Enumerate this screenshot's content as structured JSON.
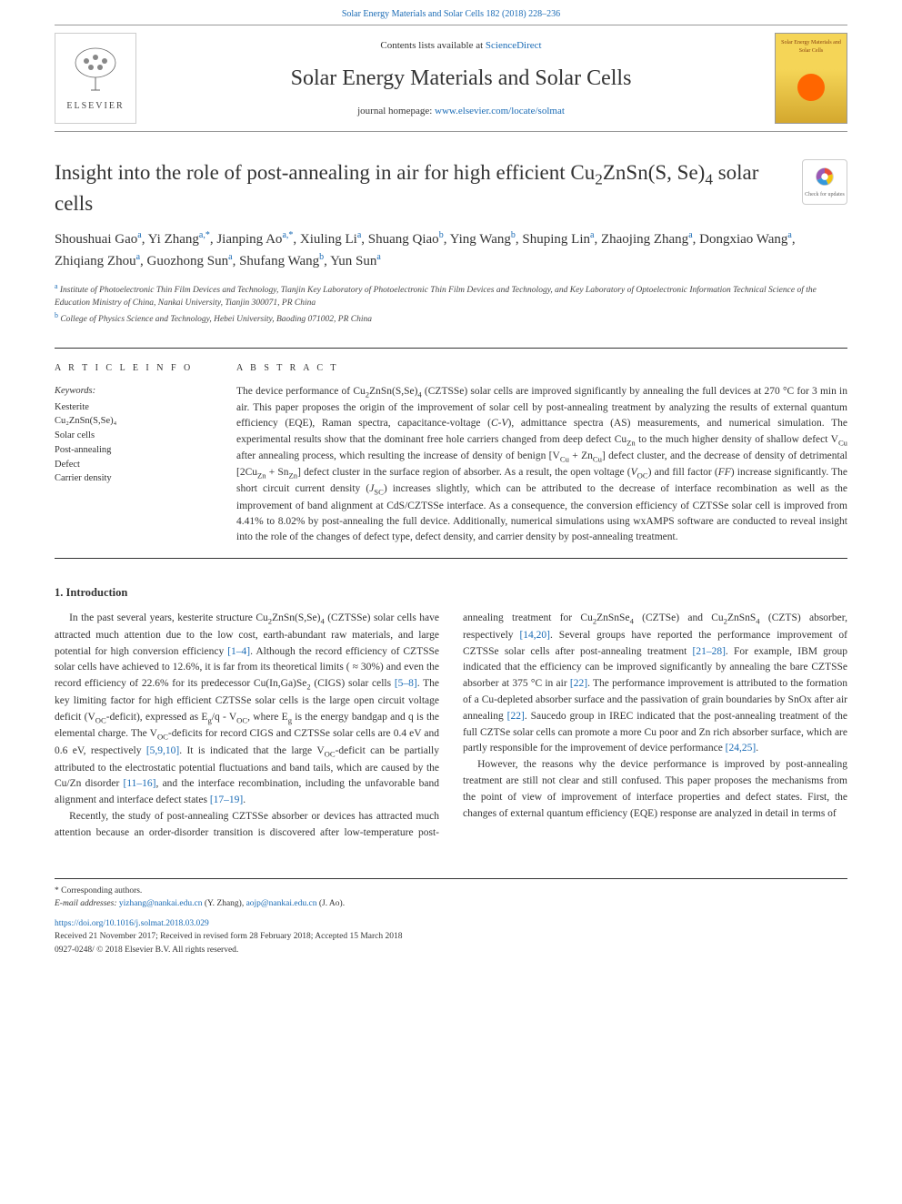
{
  "top_citation": "Solar Energy Materials and Solar Cells 182 (2018) 228–236",
  "header": {
    "contents_prefix": "Contents lists available at ",
    "contents_link": "ScienceDirect",
    "journal_name": "Solar Energy Materials and Solar Cells",
    "homepage_prefix": "journal homepage: ",
    "homepage_url": "www.elsevier.com/locate/solmat",
    "publisher": "ELSEVIER",
    "cover_text": "Solar Energy Materials and Solar Cells"
  },
  "check_updates": "Check for updates",
  "title_parts": {
    "a": "Insight into the role of post-annealing in air for high efficient Cu",
    "b": "ZnSn(S, Se)",
    "c": " solar cells"
  },
  "authors_html": "Shoushuai Gao<sup>a</sup>, Yi Zhang<sup>a,*</sup>, Jianping Ao<sup>a,*</sup>, Xiuling Li<sup>a</sup>, Shuang Qiao<sup>b</sup>, Ying Wang<sup>b</sup>, Shuping Lin<sup>a</sup>, Zhaojing Zhang<sup>a</sup>, Dongxiao Wang<sup>a</sup>, Zhiqiang Zhou<sup>a</sup>, Guozhong Sun<sup>a</sup>, Shufang Wang<sup>b</sup>, Yun Sun<sup>a</sup>",
  "affiliations": {
    "a": "Institute of Photoelectronic Thin Film Devices and Technology, Tianjin Key Laboratory of Photoelectronic Thin Film Devices and Technology, and Key Laboratory of Optoelectronic Information Technical Science of the Education Ministry of China, Nankai University, Tianjin 300071, PR China",
    "b": "College of Physics Science and Technology, Hebei University, Baoding 071002, PR China"
  },
  "info": {
    "head": "A R T I C L E  I N F O",
    "keywords_label": "Keywords:",
    "keywords": [
      "Kesterite",
      "Cu₂ZnSn(S,Se)₄",
      "Solar cells",
      "Post-annealing",
      "Defect",
      "Carrier density"
    ]
  },
  "abstract": {
    "head": "A B S T R A C T",
    "text": "The device performance of Cu₂ZnSn(S,Se)₄ (CZTSSe) solar cells are improved significantly by annealing the full devices at 270 °C for 3 min in air. This paper proposes the origin of the improvement of solar cell by post-annealing treatment by analyzing the results of external quantum efficiency (EQE), Raman spectra, capacitance-voltage (C-V), admittance spectra (AS) measurements, and numerical simulation. The experimental results show that the dominant free hole carriers changed from deep defect Cu_Zn to the much higher density of shallow defect V_Cu after annealing process, which resulting the increase of density of benign [V_Cu + Zn_Cu] defect cluster, and the decrease of density of detrimental [2Cu_Zn + Sn_Zn] defect cluster in the surface region of absorber. As a result, the open voltage (V_OC) and fill factor (FF) increase significantly. The short circuit current density (J_SC) increases slightly, which can be attributed to the decrease of interface recombination as well as the improvement of band alignment at CdS/CZTSSe interface. As a consequence, the conversion efficiency of CZTSSe solar cell is improved from 4.41% to 8.02% by post-annealing the full device. Additionally, numerical simulations using wxAMPS software are conducted to reveal insight into the role of the changes of defect type, defect density, and carrier density by post-annealing treatment."
  },
  "intro": {
    "head": "1. Introduction",
    "p1": "In the past several years, kesterite structure Cu₂ZnSn(S,Se)₄ (CZTSSe) solar cells have attracted much attention due to the low cost, earth-abundant raw materials, and large potential for high conversion efficiency [1–4]. Although the record efficiency of CZTSSe solar cells have achieved to 12.6%, it is far from its theoretical limits ( ≈ 30%) and even the record efficiency of 22.6% for its predecessor Cu(In,Ga)Se₂ (CIGS) solar cells [5–8]. The key limiting factor for high efficient CZTSSe solar cells is the large open circuit voltage deficit (V_OC-deficit), expressed as E_g/q - V_OC, where E_g is the energy bandgap and q is the elemental charge. The V_OC-deficits for record CIGS and CZTSSe solar cells are 0.4 eV and 0.6 eV, respectively [5,9,10]. It is indicated that the large V_OC-deficit can be partially attributed to the electrostatic potential fluctuations and band tails, which are caused by the Cu/Zn disorder [11–16], and the interface recombination, including the unfavorable band alignment and interface defect states [17–19].",
    "p2": "Recently, the study of post-annealing CZTSSe absorber or devices has attracted much attention because an order-disorder transition is discovered after low-temperature post-annealing treatment for Cu₂ZnSnSe₄ (CZTSe) and Cu₂ZnSnS₄ (CZTS) absorber, respectively [14,20]. Several groups have reported the performance improvement of CZTSSe solar cells after post-annealing treatment [21–28]. For example, IBM group indicated that the efficiency can be improved significantly by annealing the bare CZTSSe absorber at 375 °C in air [22]. The performance improvement is attributed to the formation of a Cu-depleted absorber surface and the passivation of grain boundaries by SnOx after air annealing [22]. Saucedo group in IREC indicated that the post-annealing treatment of the full CZTSe solar cells can promote a more Cu poor and Zn rich absorber surface, which are partly responsible for the improvement of device performance [24,25].",
    "p3": "However, the reasons why the device performance is improved by post-annealing treatment are still not clear and still confused. This paper proposes the mechanisms from the point of view of improvement of interface properties and defect states. First, the changes of external quantum efficiency (EQE) response are analyzed in detail in terms of"
  },
  "footer": {
    "corr_label": "* Corresponding authors.",
    "email_label": "E-mail addresses: ",
    "email1": "yizhang@nankai.edu.cn",
    "email1_name": " (Y. Zhang), ",
    "email2": "aojp@nankai.edu.cn",
    "email2_name": " (J. Ao).",
    "doi": "https://doi.org/10.1016/j.solmat.2018.03.029",
    "received": "Received 21 November 2017; Received in revised form 28 February 2018; Accepted 15 March 2018",
    "copyright": "0927-0248/ © 2018 Elsevier B.V. All rights reserved."
  },
  "colors": {
    "link": "#1a6bb5",
    "text": "#333333",
    "rule": "#333333",
    "cover_top": "#f5d557",
    "cover_bottom": "#d4a82e",
    "sun": "#ff6600",
    "check_red": "#e74c3c",
    "check_yellow": "#f1c40f",
    "check_blue": "#3498db"
  }
}
